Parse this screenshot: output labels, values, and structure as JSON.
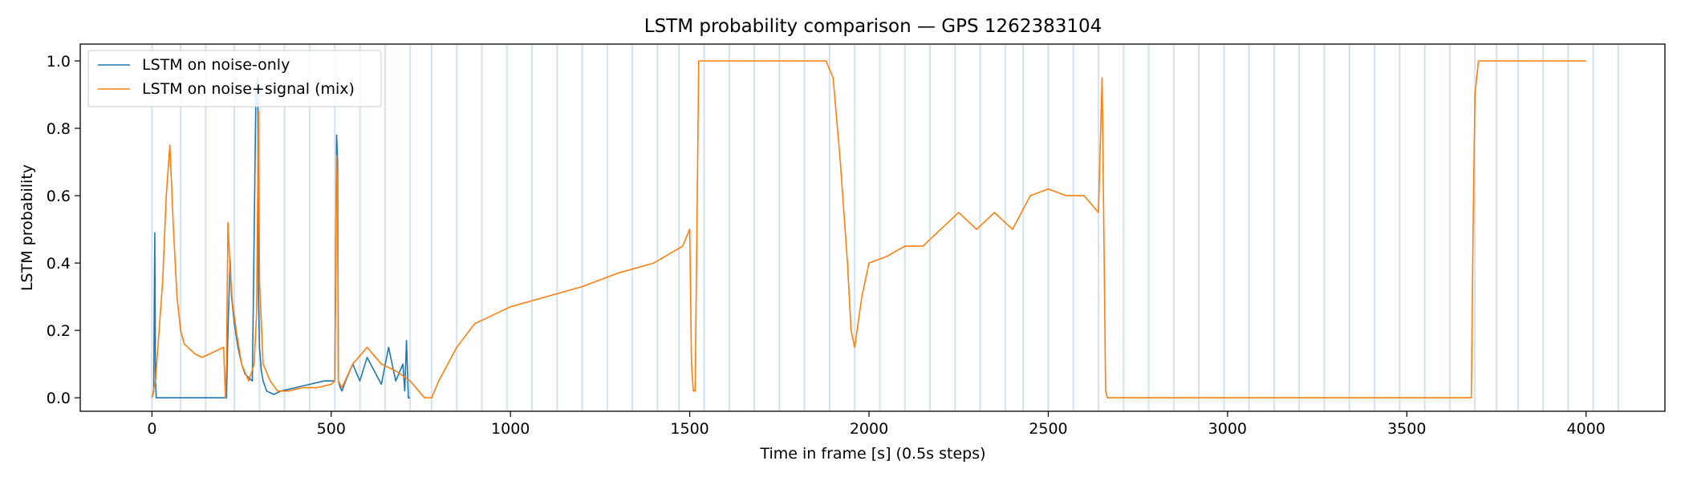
{
  "chart_data": {
    "type": "line",
    "title": "LSTM probability comparison — GPS 1262383104",
    "xlabel": "Time in frame [s] (0.5s steps)",
    "ylabel": "LSTM probability",
    "xlim": [
      -200,
      4220
    ],
    "ylim": [
      -0.04,
      1.05
    ],
    "xticks": [
      0,
      500,
      1000,
      1500,
      2000,
      2500,
      3000,
      3500,
      4000
    ],
    "yticks": [
      0.0,
      0.2,
      0.4,
      0.6,
      0.8,
      1.0
    ],
    "xtick_labels": [
      "0",
      "500",
      "1000",
      "1500",
      "2000",
      "2500",
      "3000",
      "3500",
      "4000"
    ],
    "ytick_labels": [
      "0.0",
      "0.2",
      "0.4",
      "0.6",
      "0.8",
      "1.0"
    ],
    "grid": false,
    "legend_position": "top-left",
    "segment_boundaries": [
      0,
      80,
      150,
      230,
      300,
      370,
      440,
      510,
      580,
      650,
      720,
      780,
      850,
      920,
      990,
      1060,
      1130,
      1200,
      1270,
      1340,
      1410,
      1470,
      1540,
      1610,
      1680,
      1750,
      1820,
      1890,
      1960,
      2030,
      2100,
      2170,
      2240,
      2310,
      2380,
      2430,
      2500,
      2570,
      2640,
      2710,
      2780,
      2850,
      2920,
      2990,
      3060,
      3130,
      3200,
      3270,
      3340,
      3410,
      3480,
      3550,
      3620,
      3690,
      3750,
      3810,
      3880,
      3950,
      4020,
      4090
    ],
    "series": [
      {
        "name": "LSTM on noise-only",
        "color": "#1f77b4",
        "x": [
          0,
          5,
          8,
          10,
          12,
          15,
          20,
          30,
          50,
          100,
          150,
          200,
          208,
          212,
          218,
          222,
          230,
          240,
          250,
          260,
          270,
          280,
          290,
          295,
          297,
          300,
          305,
          310,
          320,
          340,
          360,
          380,
          400,
          420,
          440,
          460,
          480,
          500,
          510,
          515,
          518,
          520,
          525,
          530,
          540,
          560,
          580,
          600,
          620,
          640,
          660,
          680,
          700,
          705,
          710,
          715,
          720
        ],
        "y": [
          0.0,
          0.02,
          0.49,
          0.05,
          0.0,
          0.0,
          0.0,
          0.0,
          0.0,
          0.0,
          0.0,
          0.0,
          0.0,
          0.2,
          0.41,
          0.3,
          0.22,
          0.15,
          0.1,
          0.07,
          0.06,
          0.05,
          0.9,
          0.95,
          0.3,
          0.15,
          0.08,
          0.05,
          0.02,
          0.01,
          0.02,
          0.025,
          0.03,
          0.035,
          0.04,
          0.045,
          0.05,
          0.05,
          0.05,
          0.78,
          0.7,
          0.05,
          0.03,
          0.02,
          0.05,
          0.1,
          0.05,
          0.12,
          0.08,
          0.04,
          0.15,
          0.05,
          0.1,
          0.02,
          0.17,
          0.0,
          0.0
        ]
      },
      {
        "name": "LSTM on noise+signal (mix)",
        "color": "#ff7f0e",
        "x": [
          0,
          10,
          20,
          30,
          40,
          50,
          60,
          70,
          80,
          90,
          100,
          120,
          140,
          160,
          180,
          200,
          205,
          208,
          212,
          218,
          225,
          235,
          250,
          270,
          285,
          292,
          297,
          300,
          310,
          330,
          350,
          380,
          420,
          460,
          500,
          510,
          515,
          518,
          520,
          530,
          560,
          600,
          640,
          680,
          720,
          760,
          780,
          800,
          850,
          900,
          1000,
          1100,
          1200,
          1300,
          1400,
          1480,
          1500,
          1505,
          1510,
          1515,
          1520,
          1525,
          1530,
          1540,
          1600,
          1700,
          1800,
          1880,
          1900,
          1920,
          1940,
          1950,
          1960,
          1980,
          2000,
          2050,
          2100,
          2150,
          2200,
          2250,
          2300,
          2350,
          2400,
          2450,
          2500,
          2550,
          2600,
          2640,
          2650,
          2655,
          2660,
          2665,
          2670,
          2700,
          2800,
          3000,
          3200,
          3400,
          3600,
          3680,
          3685,
          3690,
          3700,
          3720,
          3800,
          3900,
          4000
        ],
        "y": [
          0.0,
          0.05,
          0.2,
          0.35,
          0.6,
          0.75,
          0.5,
          0.3,
          0.2,
          0.16,
          0.15,
          0.13,
          0.12,
          0.13,
          0.14,
          0.15,
          0.0,
          0.1,
          0.52,
          0.38,
          0.28,
          0.2,
          0.1,
          0.05,
          0.1,
          0.25,
          0.85,
          0.35,
          0.1,
          0.05,
          0.02,
          0.02,
          0.03,
          0.03,
          0.04,
          0.05,
          0.72,
          0.6,
          0.05,
          0.03,
          0.1,
          0.15,
          0.1,
          0.08,
          0.05,
          0.0,
          0.0,
          0.05,
          0.15,
          0.22,
          0.27,
          0.3,
          0.33,
          0.37,
          0.4,
          0.45,
          0.5,
          0.1,
          0.02,
          0.02,
          0.5,
          1.0,
          1.0,
          1.0,
          1.0,
          1.0,
          1.0,
          1.0,
          0.95,
          0.7,
          0.4,
          0.2,
          0.15,
          0.3,
          0.4,
          0.42,
          0.45,
          0.45,
          0.5,
          0.55,
          0.5,
          0.55,
          0.5,
          0.6,
          0.62,
          0.6,
          0.6,
          0.55,
          0.95,
          0.5,
          0.02,
          0.0,
          0.0,
          0.0,
          0.0,
          0.0,
          0.0,
          0.0,
          0.0,
          0.0,
          0.5,
          0.9,
          1.0,
          1.0,
          1.0,
          1.0,
          1.0
        ]
      }
    ]
  }
}
